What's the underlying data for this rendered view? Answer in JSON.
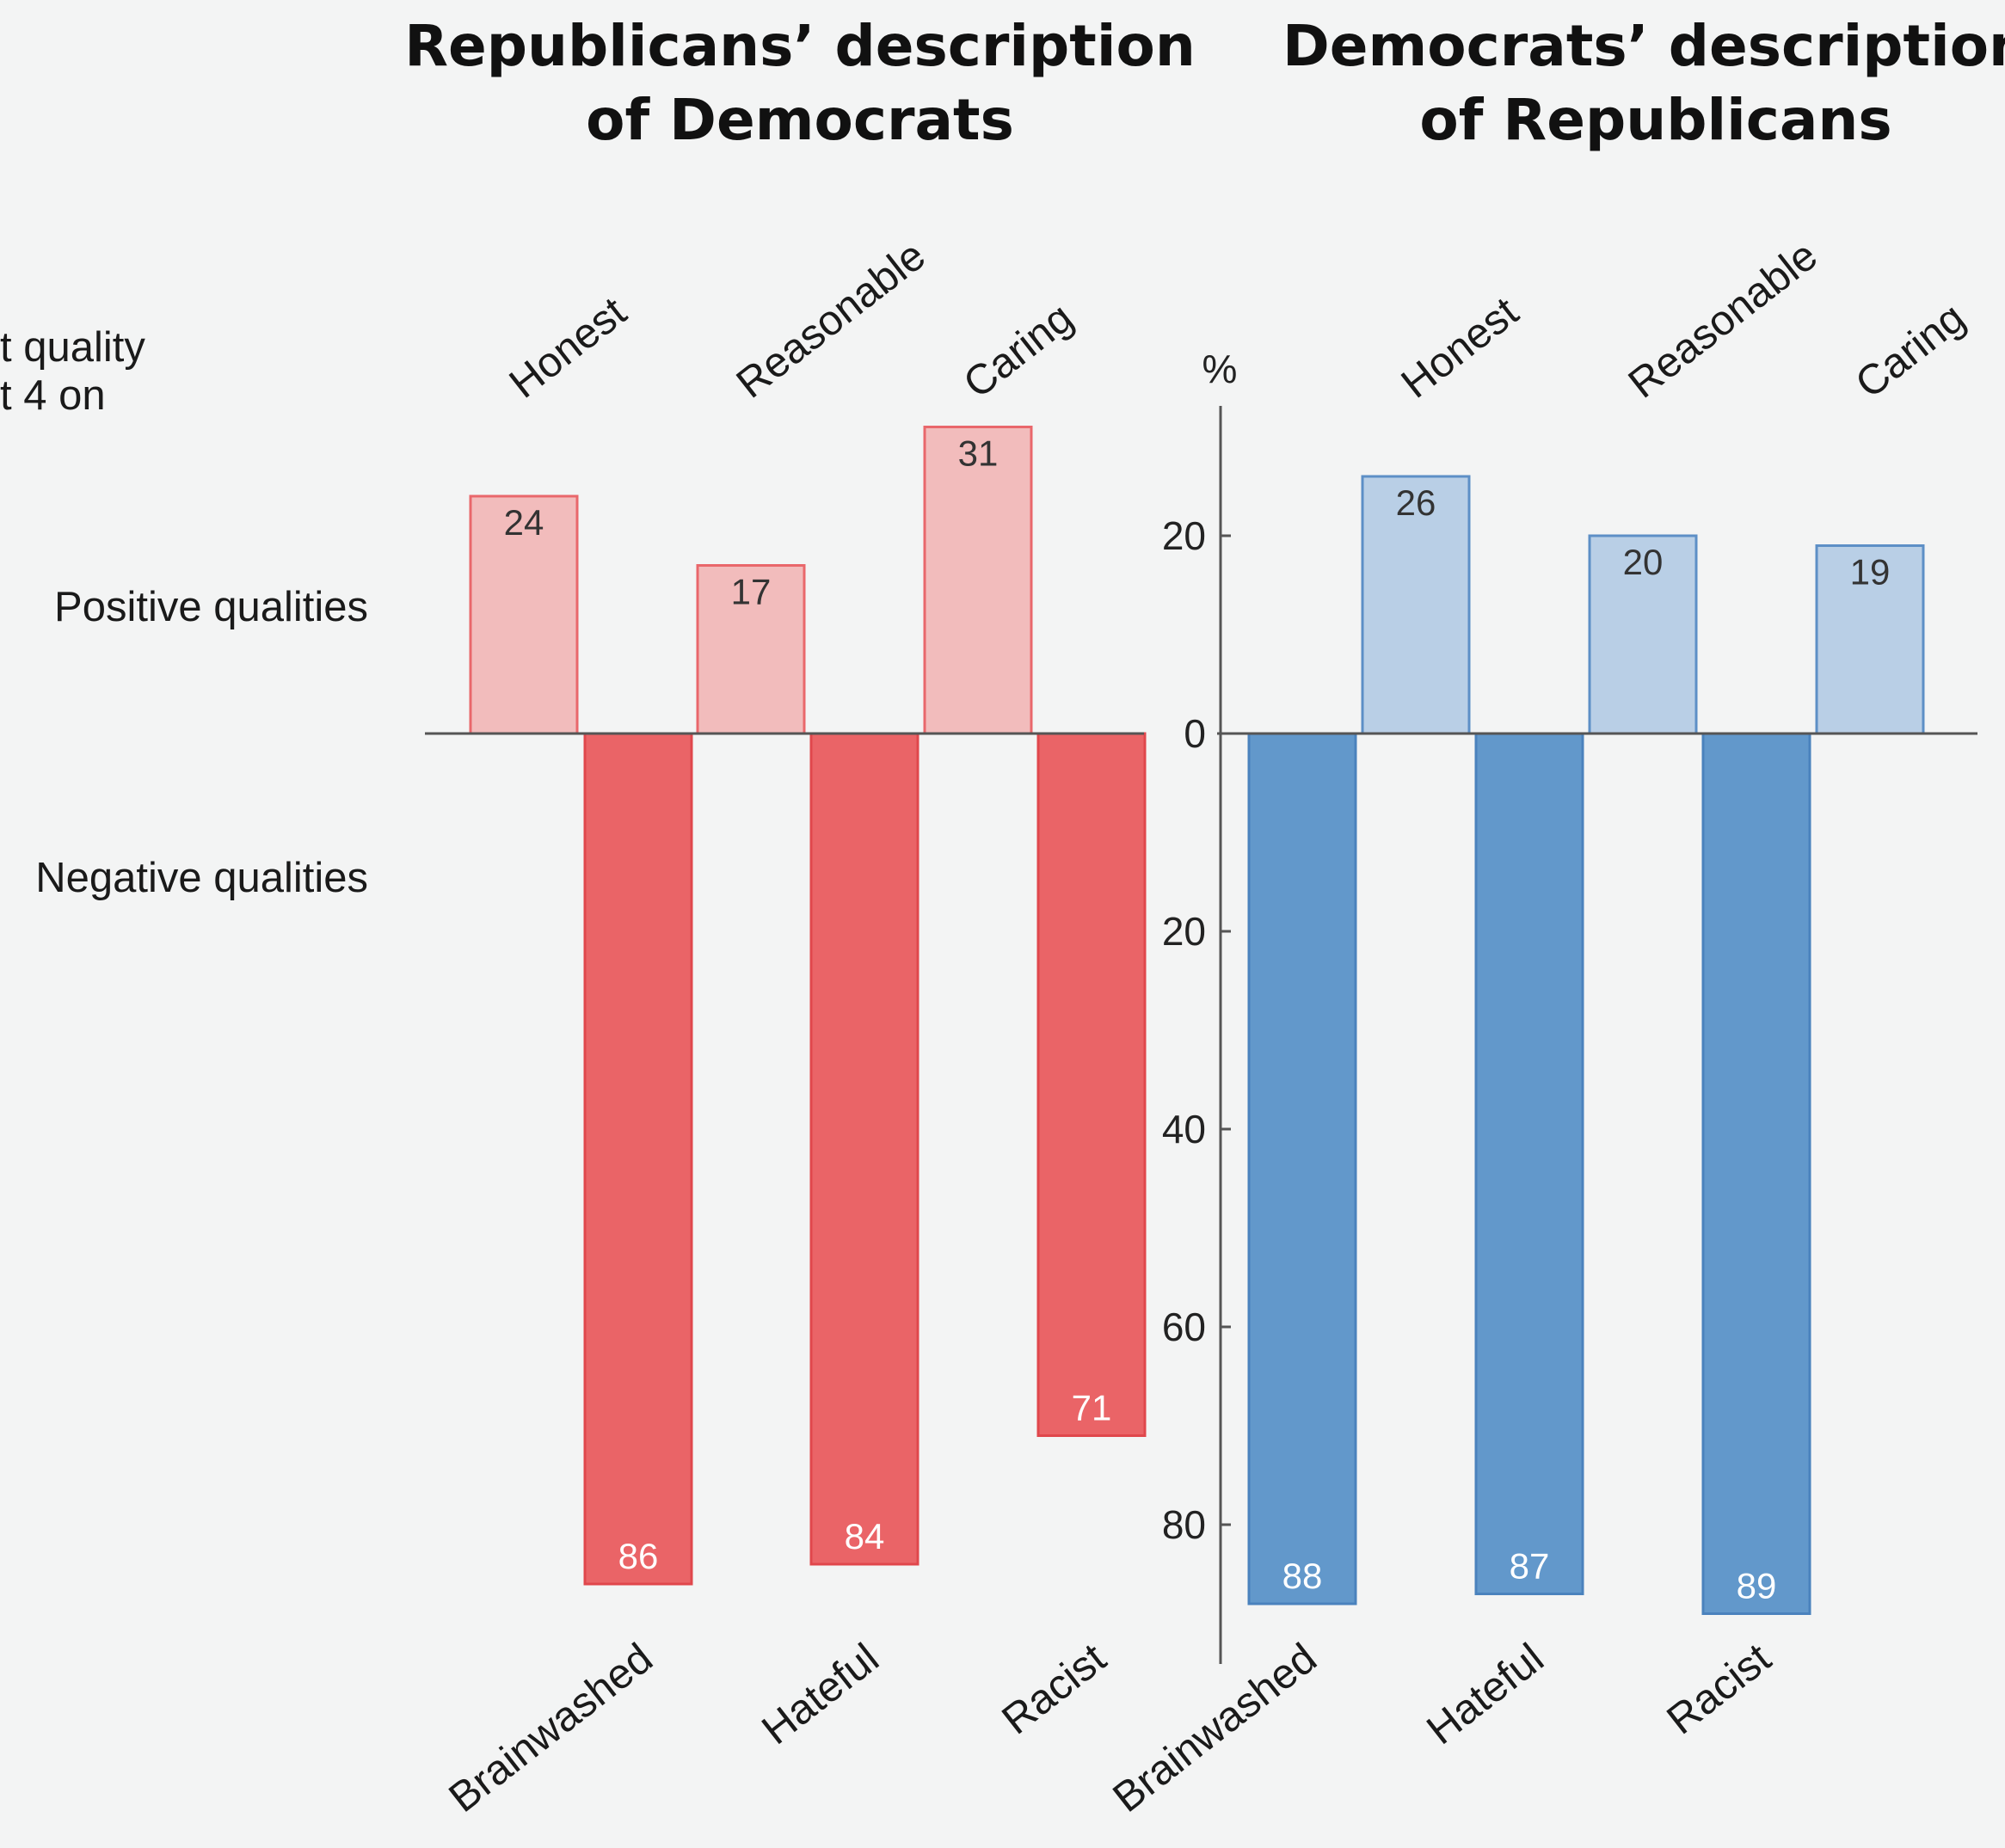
{
  "side_labels": {
    "note_line1": "t quality",
    "note_line2": "t 4 on",
    "positive": "Positive qualities",
    "negative": "Negative qualities"
  },
  "chart_data": [
    {
      "type": "bar",
      "title": "Republicans’ description of Democrats",
      "title_lines": [
        "Republicans’ description",
        "of Democrats"
      ],
      "positive_categories": [
        "Honest",
        "Reasonable",
        "Caring"
      ],
      "positive_values": [
        24,
        17,
        31
      ],
      "negative_categories": [
        "Brainwashed",
        "Hateful",
        "Racist"
      ],
      "negative_values": [
        86,
        84,
        71
      ],
      "colors": {
        "positive_fill": "#f2bcbc",
        "positive_stroke": "#e9676b",
        "negative_fill": "#ea6467",
        "negative_stroke": "#e0474c",
        "positive_label": "#333333",
        "negative_label": "#ffffff"
      }
    },
    {
      "type": "bar",
      "title": "Democrats’ description of Republicans",
      "title_lines": [
        "Democrats’ description",
        "of Republicans"
      ],
      "positive_categories": [
        "Honest",
        "Reasonable",
        "Caring"
      ],
      "positive_values": [
        26,
        20,
        19
      ],
      "negative_categories": [
        "Brainwashed",
        "Hateful",
        "Racist"
      ],
      "negative_values": [
        88,
        87,
        89
      ],
      "colors": {
        "positive_fill": "#b9cfe6",
        "positive_stroke": "#5d8fc6",
        "negative_fill": "#6298cb",
        "negative_stroke": "#4a82bd",
        "positive_label": "#333333",
        "negative_label": "#ffffff"
      }
    }
  ],
  "axis": {
    "unit": "%",
    "positive_ticks": [
      20
    ],
    "zero": 0,
    "negative_ticks": [
      20,
      40,
      60,
      80
    ],
    "ylim": [
      -94,
      33
    ]
  }
}
